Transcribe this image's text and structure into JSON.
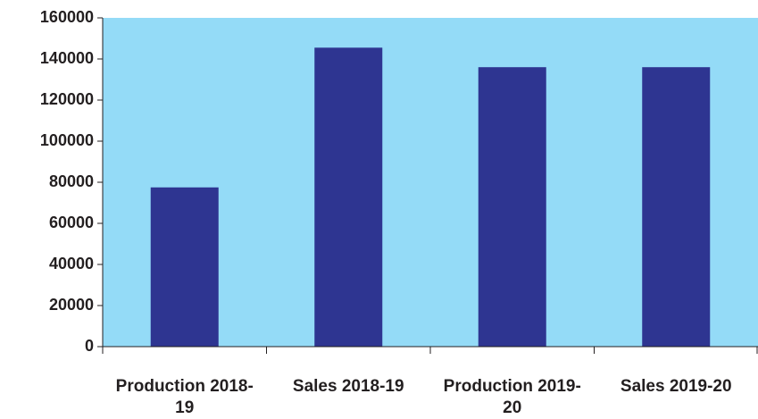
{
  "chart_data": {
    "type": "bar",
    "categories": [
      "Production 2018-19",
      "Sales 2018-19",
      "Production 2019-20",
      "Sales 2019-20"
    ],
    "values": [
      77500,
      145500,
      136000,
      136000
    ],
    "color": "#2e3591",
    "background": "#94dbf7",
    "ylim": [
      0,
      160000
    ],
    "yticks": [
      0,
      20000,
      40000,
      60000,
      80000,
      100000,
      120000,
      140000,
      160000
    ]
  }
}
